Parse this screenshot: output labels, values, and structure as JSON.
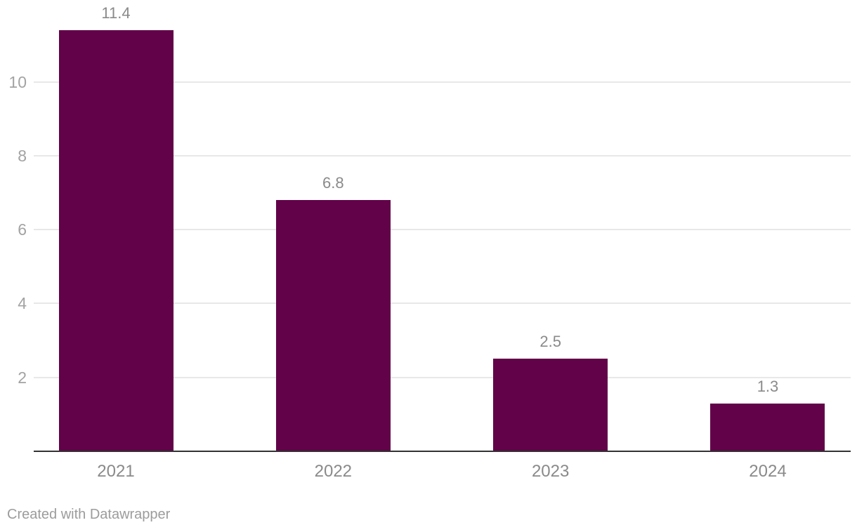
{
  "chart_data": {
    "type": "bar",
    "title": "",
    "xlabel": "",
    "ylabel": "",
    "categories": [
      "2021",
      "2022",
      "2023",
      "2024"
    ],
    "values": [
      11.4,
      6.8,
      2.5,
      1.3
    ],
    "value_labels": [
      "11.4",
      "6.8",
      "2.5",
      "1.3"
    ],
    "yticks": [
      2,
      4,
      6,
      8,
      10
    ],
    "ytick_labels": [
      "2",
      "4",
      "6",
      "8",
      "10"
    ],
    "ylim": [
      0,
      12.2
    ],
    "grid": "horizontal",
    "legend": "none",
    "bar_color": "#620248"
  },
  "colors": {
    "bar": "#620248",
    "gridline": "#e8e8e8",
    "axis_line": "#333333",
    "ytick_label": "#a3a3a3",
    "value_label": "#8a8a8a",
    "category_label": "#8a8a8a",
    "footer_text": "#9c9c9c",
    "background": "#ffffff"
  },
  "footer": {
    "text": "Created with Datawrapper"
  }
}
